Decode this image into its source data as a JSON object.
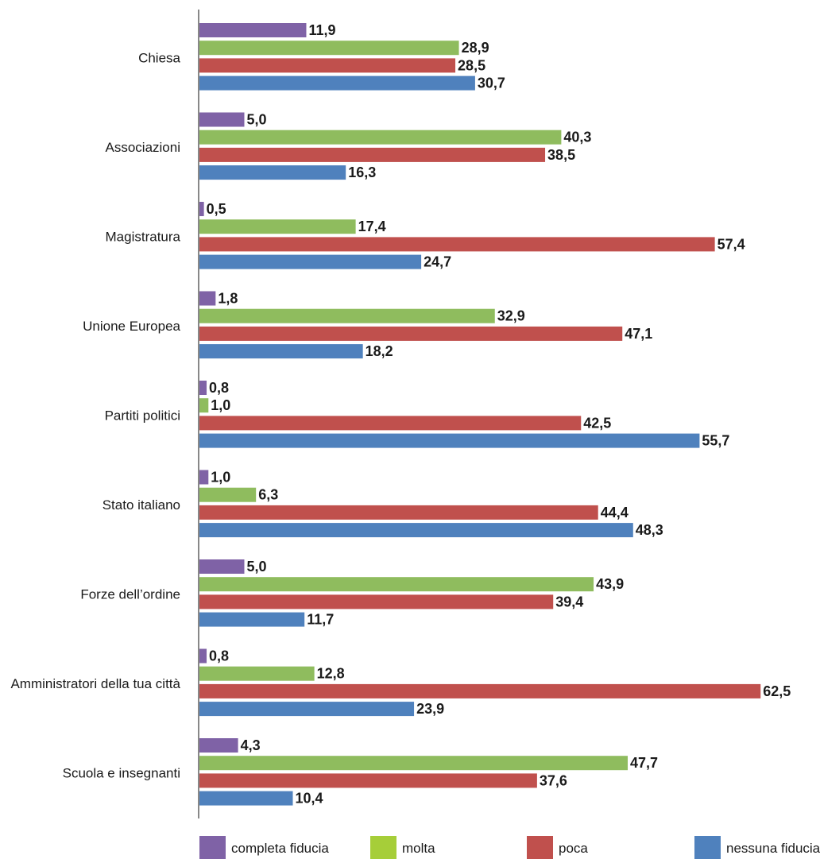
{
  "chart_data": {
    "type": "bar",
    "orientation": "horizontal",
    "categories": [
      "Chiesa",
      "Associazioni",
      "Magistratura",
      "Unione Europea",
      "Partiti politici",
      "Stato italiano",
      "Forze dell’ordine",
      "Amministratori della tua città",
      "Scuola e insegnanti"
    ],
    "series": [
      {
        "name": "completa fiducia",
        "color": "#7f62a6",
        "values": [
          11.9,
          5.0,
          0.5,
          1.8,
          0.8,
          1.0,
          5.0,
          0.8,
          4.3
        ],
        "labels": [
          "11,9",
          "5,0",
          "0,5",
          "1,8",
          "0,8",
          "1,0",
          "5,0",
          "0,8",
          "4,3"
        ]
      },
      {
        "name": "molta",
        "color": "#8fbc5e",
        "values": [
          28.9,
          40.3,
          17.4,
          32.9,
          1.0,
          6.3,
          43.9,
          12.8,
          47.7
        ],
        "labels": [
          "28,9",
          "40,3",
          "17,4",
          "32,9",
          "1,0",
          "6,3",
          "43,9",
          "12,8",
          "47,7"
        ]
      },
      {
        "name": "poca",
        "color": "#c0504d",
        "values": [
          28.5,
          38.5,
          57.4,
          47.1,
          42.5,
          44.4,
          39.4,
          62.5,
          37.6
        ],
        "labels": [
          "28,5",
          "38,5",
          "57,4",
          "47,1",
          "42,5",
          "44,4",
          "39,4",
          "62,5",
          "37,6"
        ]
      },
      {
        "name": "nessuna fiducia",
        "color": "#4f81bd",
        "values": [
          30.7,
          16.3,
          24.7,
          18.2,
          55.7,
          48.3,
          11.7,
          23.9,
          10.4
        ],
        "labels": [
          "30,7",
          "16,3",
          "24,7",
          "18,2",
          "55,7",
          "48,3",
          "11,7",
          "23,9",
          "10,4"
        ]
      }
    ],
    "legend_colors": [
      "#7f62a6",
      "#a6ce39",
      "#c0504d",
      "#4f81bd"
    ],
    "xlim": [
      0,
      70
    ],
    "grid": false,
    "legend_position": "bottom"
  }
}
